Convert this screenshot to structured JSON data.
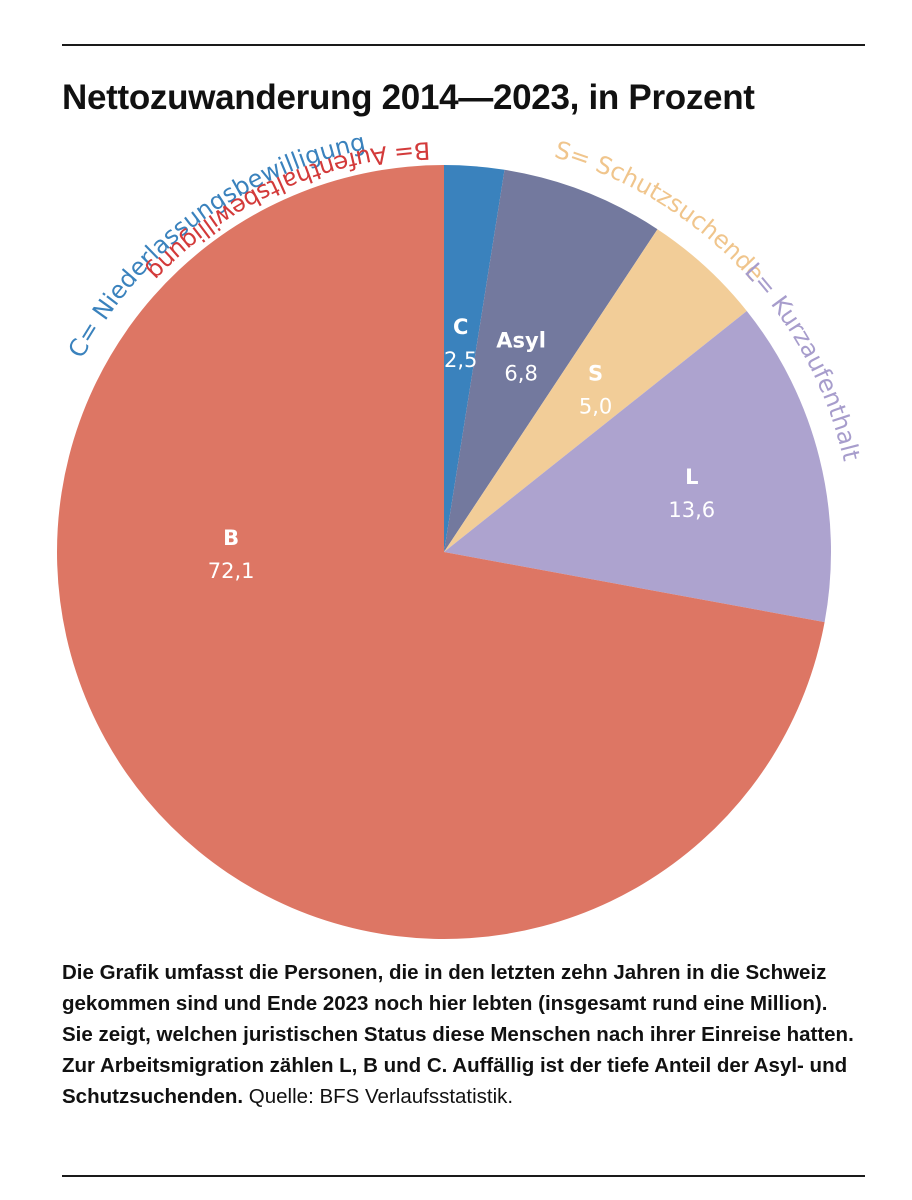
{
  "title": "Nettozuwanderung 2014—2023, in Prozent",
  "caption": {
    "bold": "Die Grafik umfasst die Personen, die in den letzten zehn Jahren in die Schweiz gekommen sind und Ende 2023 noch hier lebten (insgesamt rund eine Million). Sie zeigt, welchen juristischen Status diese Menschen nach ihrer Einreise hatten. Zur Arbeitsmigration zählen L, B und C. Auffällig ist der tiefe Anteil der Asyl- und Schutzsuchenden.",
    "source": " Quelle: BFS Verlaufsstatistik."
  },
  "chart_data": {
    "type": "pie",
    "title": "Nettozuwanderung 2014—2023, in Prozent",
    "start_angle_deg": 0,
    "direction": "clockwise",
    "slices": [
      {
        "label": "C",
        "value": 2.5,
        "value_text": "2,5",
        "color": "#3a82bd",
        "arc_label": "C= Niederlassungsbewilligung",
        "arc_color": "#3a82bd"
      },
      {
        "label": "Asyl",
        "value": 6.8,
        "value_text": "6,8",
        "color": "#73799e",
        "arc_label": "",
        "arc_color": ""
      },
      {
        "label": "S",
        "value": 5.0,
        "value_text": "5,0",
        "color": "#f2cd98",
        "arc_label": "S= Schutzsuchende",
        "arc_color": "#f0c58c"
      },
      {
        "label": "L",
        "value": 13.6,
        "value_text": "13,6",
        "color": "#ada3cf",
        "arc_label": "L= Kurzaufenthalt",
        "arc_color": "#a79dcc"
      },
      {
        "label": "B",
        "value": 72.1,
        "value_text": "72,1",
        "color": "#dd7664",
        "arc_label": "B= Aufenthaltsbewilligung",
        "arc_color": "#d33a3a"
      }
    ]
  }
}
